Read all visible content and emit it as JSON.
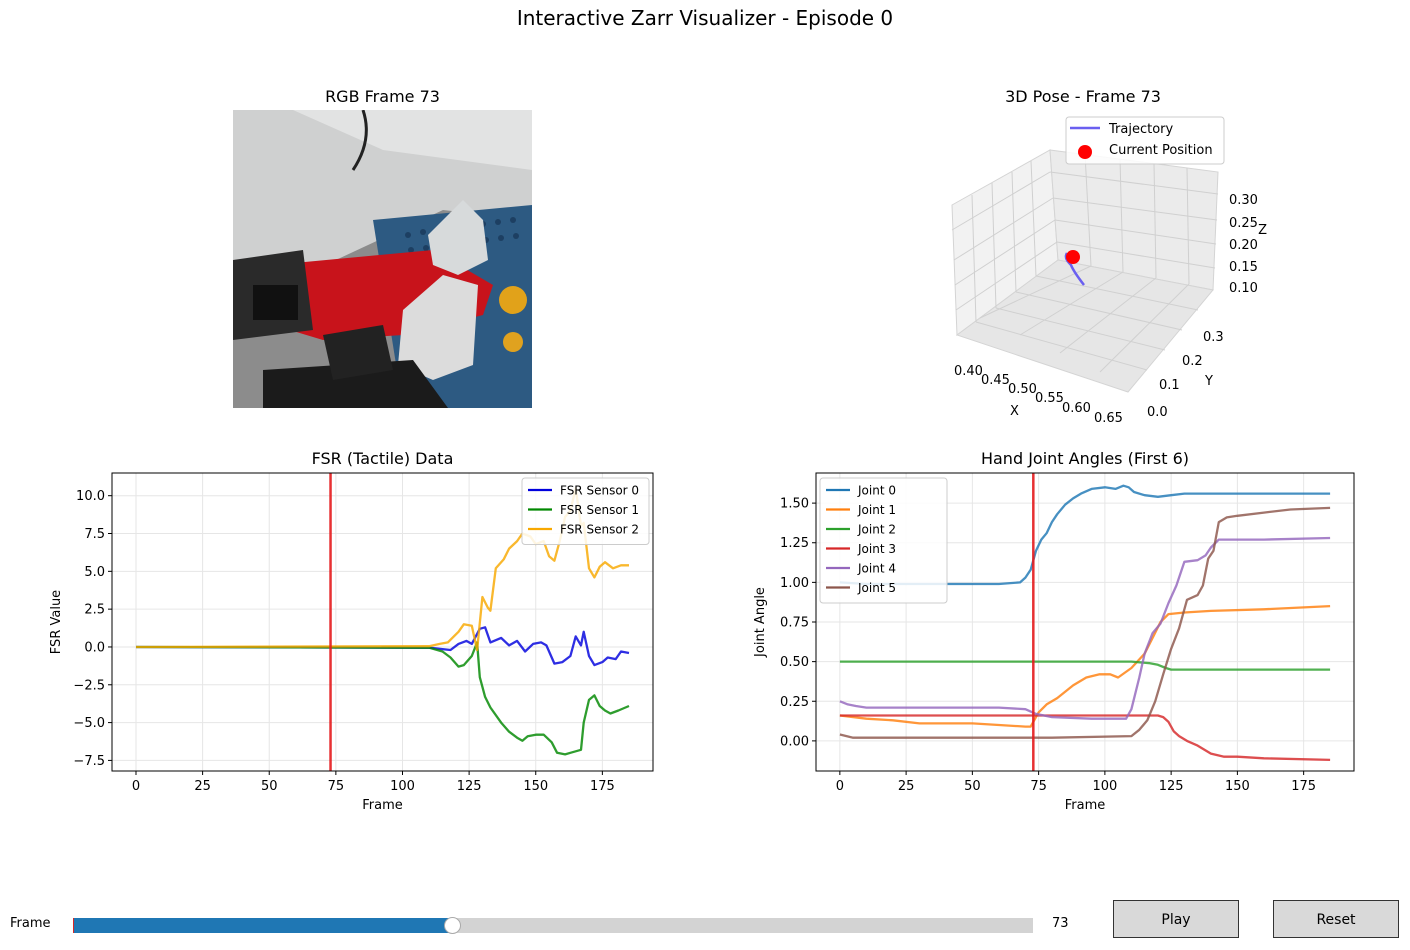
{
  "figure": {
    "suptitle": "Interactive Zarr Visualizer - Episode 0"
  },
  "rgb_panel": {
    "title": "RGB Frame 73"
  },
  "pose_panel": {
    "title": "3D Pose - Frame 73",
    "legend": [
      "Trajectory",
      "Current Position"
    ],
    "xlabel": "X",
    "ylabel": "Y",
    "zlabel": "Z",
    "x_ticks": [
      "0.40",
      "0.45",
      "0.50",
      "0.55",
      "0.60",
      "0.65"
    ],
    "y_ticks": [
      "0.0",
      "0.1",
      "0.2",
      "0.3"
    ],
    "z_ticks": [
      "0.10",
      "0.15",
      "0.20",
      "0.25",
      "0.30"
    ]
  },
  "controls": {
    "slider_label": "Frame",
    "slider_value": "73",
    "slider_min": 0,
    "slider_max": 185,
    "play_label": "Play",
    "reset_label": "Reset"
  },
  "colors": {
    "slider_fill": "#1f77b4",
    "cursor": "#e41a1c"
  },
  "chart_data": [
    {
      "type": "line",
      "title": "FSR (Tactile) Data",
      "xlabel": "Frame",
      "ylabel": "FSR Value",
      "xlim": [
        -9,
        194
      ],
      "ylim": [
        -8.2,
        11.5
      ],
      "xticks": [
        0,
        25,
        50,
        75,
        100,
        125,
        150,
        175
      ],
      "yticks": [
        -7.5,
        -5.0,
        -2.5,
        0.0,
        2.5,
        5.0,
        7.5,
        10.0
      ],
      "ytick_labels": [
        "−7.5",
        "−5.0",
        "−2.5",
        "0.0",
        "2.5",
        "5.0",
        "7.5",
        "10.0"
      ],
      "grid": true,
      "legend_position": "top-right",
      "cursor_frame": 73,
      "series": [
        {
          "name": "FSR Sensor 0",
          "color": "#0000dd",
          "points": [
            [
              0,
              0
            ],
            [
              110,
              -0.05
            ],
            [
              118,
              -0.2
            ],
            [
              121,
              0.2
            ],
            [
              124,
              0.4
            ],
            [
              126,
              0.2
            ],
            [
              129,
              1.2
            ],
            [
              131,
              1.3
            ],
            [
              133,
              0.3
            ],
            [
              137,
              0.6
            ],
            [
              140,
              0.1
            ],
            [
              143,
              0.4
            ],
            [
              146,
              -0.3
            ],
            [
              149,
              0.2
            ],
            [
              152,
              0.3
            ],
            [
              154,
              0.1
            ],
            [
              157,
              -1.1
            ],
            [
              160,
              -1.0
            ],
            [
              163,
              -0.6
            ],
            [
              165,
              0.7
            ],
            [
              167,
              0.1
            ],
            [
              168,
              1.0
            ],
            [
              170,
              -0.6
            ],
            [
              172,
              -1.2
            ],
            [
              175,
              -1.0
            ],
            [
              177,
              -0.7
            ],
            [
              180,
              -0.8
            ],
            [
              182,
              -0.3
            ],
            [
              185,
              -0.4
            ]
          ]
        },
        {
          "name": "FSR Sensor 1",
          "color": "#008800",
          "points": [
            [
              0,
              0
            ],
            [
              110,
              -0.05
            ],
            [
              115,
              -0.3
            ],
            [
              118,
              -0.7
            ],
            [
              121,
              -1.3
            ],
            [
              123,
              -1.2
            ],
            [
              126,
              -0.6
            ],
            [
              128,
              0.3
            ],
            [
              129,
              -2.0
            ],
            [
              131,
              -3.3
            ],
            [
              133,
              -4.0
            ],
            [
              137,
              -5.0
            ],
            [
              140,
              -5.6
            ],
            [
              143,
              -6.0
            ],
            [
              145,
              -6.2
            ],
            [
              147,
              -5.9
            ],
            [
              150,
              -5.8
            ],
            [
              153,
              -5.8
            ],
            [
              156,
              -6.3
            ],
            [
              158,
              -7.0
            ],
            [
              161,
              -7.1
            ],
            [
              163,
              -7.0
            ],
            [
              165,
              -6.9
            ],
            [
              167,
              -6.8
            ],
            [
              168,
              -5.0
            ],
            [
              170,
              -3.5
            ],
            [
              172,
              -3.2
            ],
            [
              174,
              -3.9
            ],
            [
              176,
              -4.2
            ],
            [
              178,
              -4.4
            ],
            [
              181,
              -4.2
            ],
            [
              185,
              -3.9
            ]
          ]
        },
        {
          "name": "FSR Sensor 2",
          "color": "#f8a800",
          "points": [
            [
              0,
              0
            ],
            [
              110,
              0.05
            ],
            [
              114,
              0.2
            ],
            [
              117,
              0.3
            ],
            [
              121,
              1.0
            ],
            [
              123,
              1.5
            ],
            [
              126,
              1.4
            ],
            [
              128,
              -0.2
            ],
            [
              130,
              3.3
            ],
            [
              132,
              2.6
            ],
            [
              133,
              2.4
            ],
            [
              135,
              5.2
            ],
            [
              138,
              5.8
            ],
            [
              140,
              6.5
            ],
            [
              143,
              7.0
            ],
            [
              145,
              7.5
            ],
            [
              148,
              7.3
            ],
            [
              150,
              6.8
            ],
            [
              153,
              7.0
            ],
            [
              155,
              6.0
            ],
            [
              157,
              5.7
            ],
            [
              159,
              7.0
            ],
            [
              161,
              8.6
            ],
            [
              163,
              9.0
            ],
            [
              165,
              10.5
            ],
            [
              167,
              8.0
            ],
            [
              168,
              8.2
            ],
            [
              170,
              5.2
            ],
            [
              172,
              4.6
            ],
            [
              174,
              5.3
            ],
            [
              176,
              5.6
            ],
            [
              179,
              5.2
            ],
            [
              182,
              5.4
            ],
            [
              185,
              5.4
            ]
          ]
        }
      ]
    },
    {
      "type": "line",
      "title": "Hand Joint Angles (First 6)",
      "xlabel": "Frame",
      "ylabel": "Joint Angle",
      "xlim": [
        -9,
        194
      ],
      "ylim": [
        -0.19,
        1.69
      ],
      "xticks": [
        0,
        25,
        50,
        75,
        100,
        125,
        150,
        175
      ],
      "yticks": [
        0.0,
        0.25,
        0.5,
        0.75,
        1.0,
        1.25,
        1.5
      ],
      "ytick_labels": [
        "0.00",
        "0.25",
        "0.50",
        "0.75",
        "1.00",
        "1.25",
        "1.50"
      ],
      "grid": true,
      "legend_position": "top-left",
      "cursor_frame": 73,
      "series": [
        {
          "name": "Joint 0",
          "color": "#1f77b4",
          "points": [
            [
              0,
              1.0
            ],
            [
              10,
              0.99
            ],
            [
              30,
              0.99
            ],
            [
              60,
              0.99
            ],
            [
              68,
              1.0
            ],
            [
              70,
              1.03
            ],
            [
              72,
              1.08
            ],
            [
              74,
              1.2
            ],
            [
              76,
              1.27
            ],
            [
              78,
              1.31
            ],
            [
              80,
              1.38
            ],
            [
              82,
              1.43
            ],
            [
              85,
              1.49
            ],
            [
              88,
              1.53
            ],
            [
              91,
              1.56
            ],
            [
              95,
              1.59
            ],
            [
              100,
              1.6
            ],
            [
              104,
              1.59
            ],
            [
              107,
              1.61
            ],
            [
              109,
              1.6
            ],
            [
              111,
              1.57
            ],
            [
              115,
              1.55
            ],
            [
              120,
              1.54
            ],
            [
              125,
              1.55
            ],
            [
              130,
              1.56
            ],
            [
              140,
              1.56
            ],
            [
              160,
              1.56
            ],
            [
              185,
              1.56
            ]
          ]
        },
        {
          "name": "Joint 1",
          "color": "#ff7f0e",
          "points": [
            [
              0,
              0.16
            ],
            [
              5,
              0.15
            ],
            [
              10,
              0.14
            ],
            [
              20,
              0.13
            ],
            [
              30,
              0.11
            ],
            [
              50,
              0.11
            ],
            [
              60,
              0.1
            ],
            [
              70,
              0.09
            ],
            [
              72,
              0.09
            ],
            [
              75,
              0.18
            ],
            [
              78,
              0.23
            ],
            [
              82,
              0.27
            ],
            [
              88,
              0.35
            ],
            [
              93,
              0.4
            ],
            [
              98,
              0.42
            ],
            [
              102,
              0.42
            ],
            [
              105,
              0.4
            ],
            [
              110,
              0.46
            ],
            [
              115,
              0.55
            ],
            [
              118,
              0.65
            ],
            [
              121,
              0.75
            ],
            [
              124,
              0.8
            ],
            [
              130,
              0.81
            ],
            [
              140,
              0.82
            ],
            [
              160,
              0.83
            ],
            [
              185,
              0.85
            ]
          ]
        },
        {
          "name": "Joint 2",
          "color": "#2ca02c",
          "points": [
            [
              0,
              0.5
            ],
            [
              20,
              0.5
            ],
            [
              50,
              0.5
            ],
            [
              80,
              0.5
            ],
            [
              110,
              0.5
            ],
            [
              117,
              0.49
            ],
            [
              120,
              0.48
            ],
            [
              123,
              0.46
            ],
            [
              125,
              0.45
            ],
            [
              140,
              0.45
            ],
            [
              160,
              0.45
            ],
            [
              185,
              0.45
            ]
          ]
        },
        {
          "name": "Joint 3",
          "color": "#d62728",
          "points": [
            [
              0,
              0.16
            ],
            [
              30,
              0.16
            ],
            [
              60,
              0.16
            ],
            [
              90,
              0.16
            ],
            [
              110,
              0.16
            ],
            [
              120,
              0.16
            ],
            [
              122,
              0.15
            ],
            [
              124,
              0.12
            ],
            [
              126,
              0.06
            ],
            [
              128,
              0.03
            ],
            [
              131,
              0.0
            ],
            [
              135,
              -0.03
            ],
            [
              140,
              -0.08
            ],
            [
              145,
              -0.1
            ],
            [
              150,
              -0.1
            ],
            [
              160,
              -0.11
            ],
            [
              185,
              -0.12
            ]
          ]
        },
        {
          "name": "Joint 4",
          "color": "#9467bd",
          "points": [
            [
              0,
              0.25
            ],
            [
              3,
              0.23
            ],
            [
              6,
              0.22
            ],
            [
              10,
              0.21
            ],
            [
              30,
              0.21
            ],
            [
              60,
              0.21
            ],
            [
              70,
              0.2
            ],
            [
              74,
              0.17
            ],
            [
              80,
              0.15
            ],
            [
              95,
              0.14
            ],
            [
              108,
              0.14
            ],
            [
              110,
              0.2
            ],
            [
              113,
              0.4
            ],
            [
              115,
              0.55
            ],
            [
              118,
              0.68
            ],
            [
              121,
              0.74
            ],
            [
              124,
              0.87
            ],
            [
              127,
              0.98
            ],
            [
              130,
              1.13
            ],
            [
              135,
              1.14
            ],
            [
              138,
              1.17
            ],
            [
              140,
              1.22
            ],
            [
              143,
              1.27
            ],
            [
              150,
              1.27
            ],
            [
              160,
              1.27
            ],
            [
              185,
              1.28
            ]
          ]
        },
        {
          "name": "Joint 5",
          "color": "#8c564b",
          "points": [
            [
              0,
              0.04
            ],
            [
              5,
              0.02
            ],
            [
              20,
              0.02
            ],
            [
              50,
              0.02
            ],
            [
              80,
              0.02
            ],
            [
              110,
              0.03
            ],
            [
              113,
              0.07
            ],
            [
              116,
              0.13
            ],
            [
              119,
              0.25
            ],
            [
              122,
              0.42
            ],
            [
              125,
              0.58
            ],
            [
              128,
              0.71
            ],
            [
              131,
              0.89
            ],
            [
              135,
              0.92
            ],
            [
              137,
              0.98
            ],
            [
              139,
              1.15
            ],
            [
              141,
              1.2
            ],
            [
              143,
              1.38
            ],
            [
              146,
              1.41
            ],
            [
              150,
              1.42
            ],
            [
              160,
              1.44
            ],
            [
              170,
              1.46
            ],
            [
              185,
              1.47
            ]
          ]
        }
      ]
    }
  ]
}
